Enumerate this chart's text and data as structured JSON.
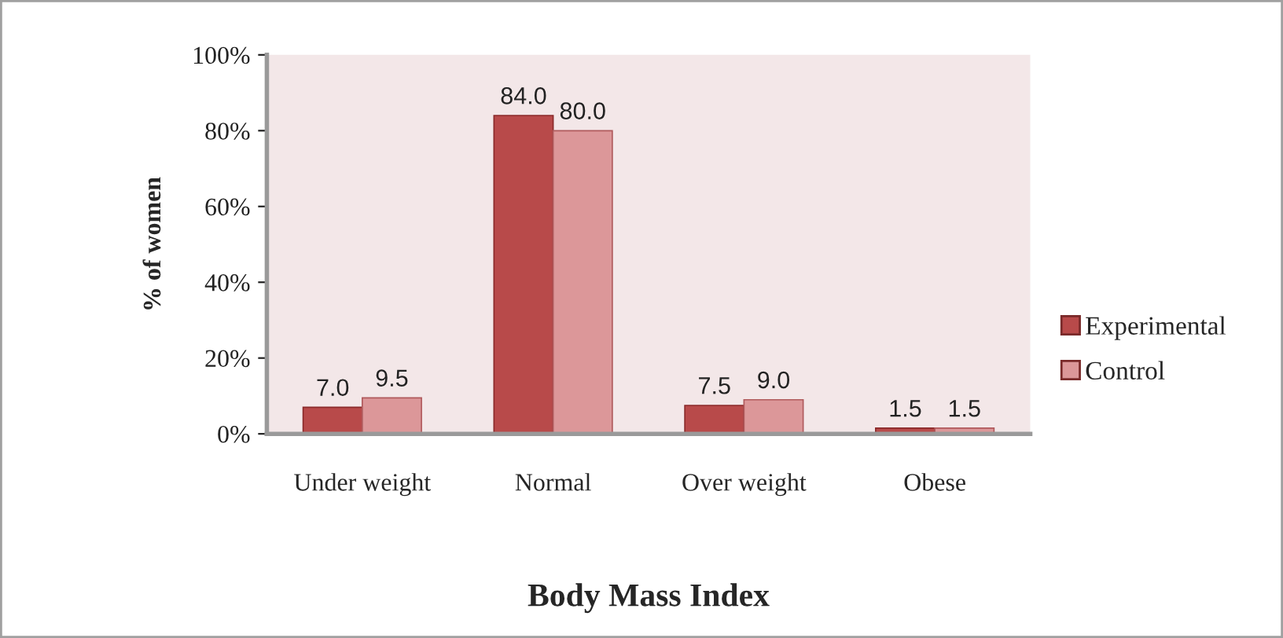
{
  "chart_data": {
    "type": "bar",
    "xlabel": "Body Mass Index",
    "ylabel": "% of women",
    "categories": [
      "Under weight",
      "Normal",
      "Over weight",
      "Obese"
    ],
    "series": [
      {
        "name": "Experimental",
        "color": "#b84a4a",
        "values": [
          7.0,
          84.0,
          7.5,
          1.5
        ],
        "value_labels": [
          "7.0",
          "84.0",
          "7.5",
          "1.5"
        ]
      },
      {
        "name": "Control",
        "color": "#dc9799",
        "values": [
          9.5,
          80.0,
          9.0,
          1.5
        ],
        "value_labels": [
          "9.5",
          "80.0",
          "9.0",
          "1.5"
        ]
      }
    ],
    "ylim": [
      0,
      100
    ],
    "yticks": [
      {
        "value": 0,
        "label": "0%"
      },
      {
        "value": 20,
        "label": "20%"
      },
      {
        "value": 40,
        "label": "40%"
      },
      {
        "value": 60,
        "label": "60%"
      },
      {
        "value": 80,
        "label": "80%"
      },
      {
        "value": 100,
        "label": "100%"
      }
    ],
    "legend": "right"
  }
}
